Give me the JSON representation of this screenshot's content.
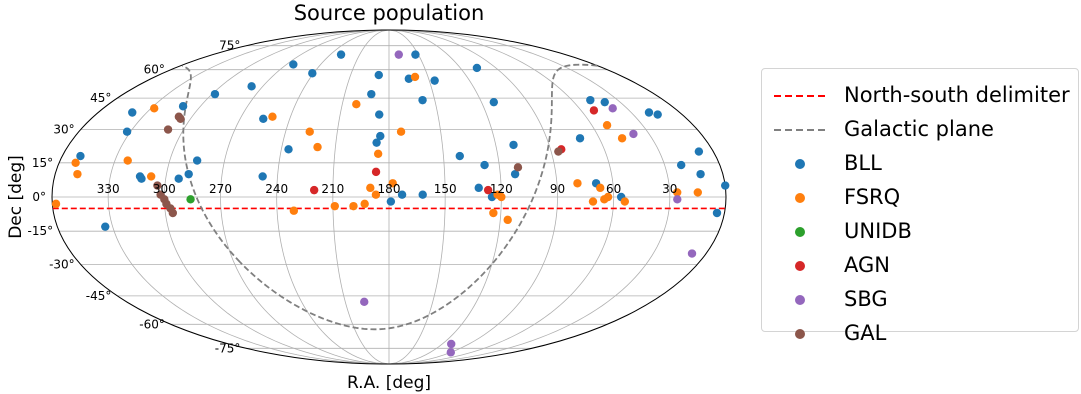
{
  "chart_data": {
    "type": "scatter",
    "projection": "mollweide",
    "title": "Source population",
    "xlabel": "R.A. [deg]",
    "ylabel": "Dec [deg]",
    "x_axis_direction": "reversed (R.A. increases to the left)",
    "xlim": [
      0,
      360
    ],
    "ylim": [
      -90,
      90
    ],
    "grid": true,
    "legend_position": "right",
    "ra_tick_labels": [
      "330",
      "300",
      "270",
      "240",
      "210",
      "180",
      "150",
      "120",
      "90",
      "60",
      "30"
    ],
    "dec_tick_labels": [
      "75°",
      "60°",
      "45°",
      "30°",
      "15°",
      "0°",
      "-15°",
      "-30°",
      "-45°",
      "-60°",
      "-75°"
    ],
    "lines": [
      {
        "name": "North-south delimiter",
        "color": "#ff0000",
        "style": "dashed",
        "dec": -5
      },
      {
        "name": "Galactic plane",
        "color": "#808080",
        "style": "dashed"
      }
    ],
    "series": [
      {
        "name": "BLL",
        "color": "#1f77b4",
        "points": [
          [
            350,
            18
          ],
          [
            339,
            38
          ],
          [
            334,
            -13
          ],
          [
            332,
            29
          ],
          [
            314,
            9
          ],
          [
            313,
            8
          ],
          [
            311,
            41
          ],
          [
            298,
            47
          ],
          [
            293,
            8
          ],
          [
            288,
            10
          ],
          [
            285,
            16
          ],
          [
            278,
            51
          ],
          [
            264,
            63
          ],
          [
            256,
            35
          ],
          [
            248,
            9
          ],
          [
            241,
            58
          ],
          [
            236,
            21
          ],
          [
            229,
            69
          ],
          [
            192,
            47
          ],
          [
            188,
            57
          ],
          [
            187,
            24
          ],
          [
            186,
            37
          ],
          [
            185,
            27
          ],
          [
            179,
            -2
          ],
          [
            173,
            1
          ],
          [
            165,
            55
          ],
          [
            162,
            1
          ],
          [
            158,
            44
          ],
          [
            153,
            69
          ],
          [
            146,
            54
          ],
          [
            141,
            18
          ],
          [
            132,
            4
          ],
          [
            128,
            14
          ],
          [
            125,
            0
          ],
          [
            112,
            10
          ],
          [
            112,
            43
          ],
          [
            110,
            23
          ],
          [
            106,
            61
          ],
          [
            71,
            26
          ],
          [
            69,
            6
          ],
          [
            56,
            0
          ],
          [
            48,
            44
          ],
          [
            40,
            43
          ],
          [
            21,
            14
          ],
          [
            19,
            38
          ],
          [
            15,
            37
          ],
          [
            12,
            10
          ],
          [
            8,
            20
          ],
          [
            4,
            -7
          ],
          [
            0,
            5
          ]
        ]
      },
      {
        "name": "FSRQ",
        "color": "#ff7f0e",
        "points": [
          [
            358,
            -3
          ],
          [
            351,
            15
          ],
          [
            348,
            10
          ],
          [
            328,
            40
          ],
          [
            323,
            16
          ],
          [
            308,
            9
          ],
          [
            251,
            36
          ],
          [
            231,
            -6
          ],
          [
            226,
            29
          ],
          [
            220,
            22
          ],
          [
            209,
            -4
          ],
          [
            201,
            42
          ],
          [
            199,
            -4
          ],
          [
            193,
            -3
          ],
          [
            190,
            4
          ],
          [
            187,
            1
          ],
          [
            186,
            19
          ],
          [
            178,
            6
          ],
          [
            173,
            29
          ],
          [
            160,
            56
          ],
          [
            124,
            -7
          ],
          [
            122,
            1
          ],
          [
            120,
            0
          ],
          [
            116,
            -10
          ],
          [
            79,
            6
          ],
          [
            71,
            -2
          ],
          [
            67,
            4
          ],
          [
            65,
            -1
          ],
          [
            63,
            0
          ],
          [
            54,
            -2
          ],
          [
            51,
            32
          ],
          [
            47,
            26
          ],
          [
            26,
            2
          ],
          [
            15,
            2
          ]
        ]
      },
      {
        "name": "UNIDB",
        "color": "#2ca02c",
        "points": [
          [
            286,
            -1
          ]
        ]
      },
      {
        "name": "AGN",
        "color": "#d62728",
        "points": [
          [
            220,
            3
          ],
          [
            187,
            11
          ],
          [
            127,
            3
          ],
          [
            84,
            21
          ],
          [
            52,
            39
          ]
        ]
      },
      {
        "name": "SBG",
        "color": "#9467bd",
        "points": [
          [
            197,
            -48
          ],
          [
            170,
            69
          ],
          [
            110,
            -72
          ],
          [
            90,
            -78
          ],
          [
            39,
            40
          ],
          [
            39,
            28
          ],
          [
            26,
            -1
          ],
          [
            8,
            -25
          ]
        ]
      },
      {
        "name": "GAL",
        "color": "#8c564b",
        "points": [
          [
            309,
            30
          ],
          [
            308,
            36
          ],
          [
            306,
            35
          ],
          [
            304,
            5
          ],
          [
            302,
            1
          ],
          [
            300,
            -1
          ],
          [
            299,
            -3
          ],
          [
            297,
            -5
          ],
          [
            296,
            -7
          ],
          [
            110,
            13
          ],
          [
            86,
            20
          ]
        ]
      }
    ]
  }
}
